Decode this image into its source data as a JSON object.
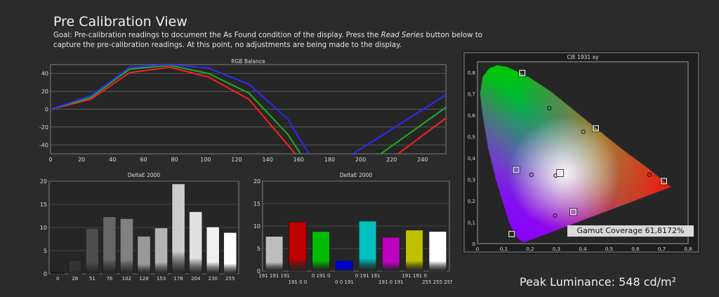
{
  "page": {
    "title": "Pre Calibration View",
    "goal_prefix": "Goal: Pre-calibration readings to document the As Found condition of the display. Press the",
    "goal_em": "Read Series",
    "goal_suffix": "button below to capture the pre-calibration readings. At this point, no adjustments are being made to the display.",
    "peak_luminance": "Peak Luminance: 548 cd/m²",
    "gamut_coverage": "Gamut Coverage 61,8172%"
  },
  "chart_data": [
    {
      "id": "rgb",
      "type": "line",
      "title": "RGB Balance",
      "xlim": [
        0,
        255
      ],
      "ylim": [
        -50,
        50
      ],
      "xticks": [
        0,
        20,
        40,
        60,
        80,
        100,
        120,
        140,
        160,
        180,
        200,
        220,
        240
      ],
      "yticks": [
        40,
        20,
        0,
        -20,
        -40
      ],
      "series": [
        {
          "color": "#ff2020",
          "x": [
            0,
            26,
            51,
            77,
            102,
            128,
            153,
            165
          ],
          "y": [
            0,
            11,
            41,
            47,
            36,
            11,
            -40,
            -65
          ]
        },
        {
          "color": "#1fae1f",
          "x": [
            0,
            26,
            51,
            77,
            102,
            128,
            153,
            165
          ],
          "y": [
            0,
            13,
            45,
            49,
            40,
            18,
            -28,
            -60
          ]
        },
        {
          "color": "#2b2bff",
          "x": [
            0,
            26,
            51,
            77,
            102,
            128,
            153,
            170
          ],
          "y": [
            0,
            15,
            47,
            50,
            46,
            28,
            -11,
            -60
          ]
        },
        {
          "color": "#1fae1f",
          "x": [
            205,
            255
          ],
          "y": [
            -60,
            2
          ]
        },
        {
          "color": "#2b2bff",
          "x": [
            195,
            255
          ],
          "y": [
            -50,
            16
          ]
        },
        {
          "color": "#ff2020",
          "x": [
            215,
            255
          ],
          "y": [
            -62,
            -10
          ]
        }
      ]
    },
    {
      "id": "de_gray",
      "type": "bar",
      "title": "DeltaE 2000",
      "ylim": [
        0,
        20
      ],
      "yticks": [
        20,
        15,
        10,
        5,
        0
      ],
      "categories": [
        "0",
        "26",
        "51",
        "76",
        "102",
        "128",
        "153",
        "178",
        "204",
        "230",
        "255"
      ],
      "values": [
        0.3,
        2.9,
        9.8,
        12.3,
        11.9,
        8.1,
        9.9,
        19.4,
        13.4,
        10.1,
        8.9
      ],
      "colors": [
        "#1a1a1a",
        "#333333",
        "#4d4d4d",
        "#666666",
        "#808080",
        "#999999",
        "#b3b3b3",
        "#cccccc",
        "#e0e0e0",
        "#f0f0f0",
        "#ffffff"
      ]
    },
    {
      "id": "de_color",
      "type": "bar",
      "title": "DeltaE 2000",
      "ylim": [
        0,
        20
      ],
      "yticks": [
        20,
        15,
        10,
        5,
        0
      ],
      "categories": [
        "191 191 191",
        "191 0 0",
        "0 191 0",
        "0 0 191",
        "0 191 191",
        "191 0 191",
        "191 191 0",
        "255 255 255"
      ],
      "label_rows": [
        0,
        1,
        0,
        1,
        0,
        1,
        0,
        1
      ],
      "values": [
        7.7,
        10.9,
        8.8,
        2.3,
        11.1,
        7.5,
        9.1,
        8.8
      ],
      "colors": [
        "#bdbdbd",
        "#c00000",
        "#00bb00",
        "#0000c8",
        "#00c0c0",
        "#c000c0",
        "#c0c000",
        "#ffffff"
      ]
    },
    {
      "id": "cie",
      "type": "scatter",
      "title": "CIE 1931 xy",
      "xlim": [
        0,
        0.8
      ],
      "ylim": [
        0,
        0.85
      ],
      "xticks": [
        "0",
        "0,1",
        "0,2",
        "0,3",
        "0,4",
        "0,5",
        "0,6",
        "0,7",
        "0,8"
      ],
      "yticks": [
        "0,8",
        "0,7",
        "0,6",
        "0,5",
        "0,4",
        "0,3",
        "0,2",
        "0,1",
        "0"
      ],
      "measured": [
        [
          0.17,
          0.797
        ],
        [
          0.13,
          0.045
        ],
        [
          0.708,
          0.292
        ],
        [
          0.147,
          0.345
        ],
        [
          0.314,
          0.33
        ],
        [
          0.449,
          0.539
        ],
        [
          0.364,
          0.148
        ]
      ],
      "targets": [
        [
          0.273,
          0.633
        ],
        [
          0.402,
          0.523
        ],
        [
          0.205,
          0.322
        ],
        [
          0.297,
          0.318
        ],
        [
          0.295,
          0.131
        ],
        [
          0.653,
          0.322
        ]
      ]
    }
  ]
}
